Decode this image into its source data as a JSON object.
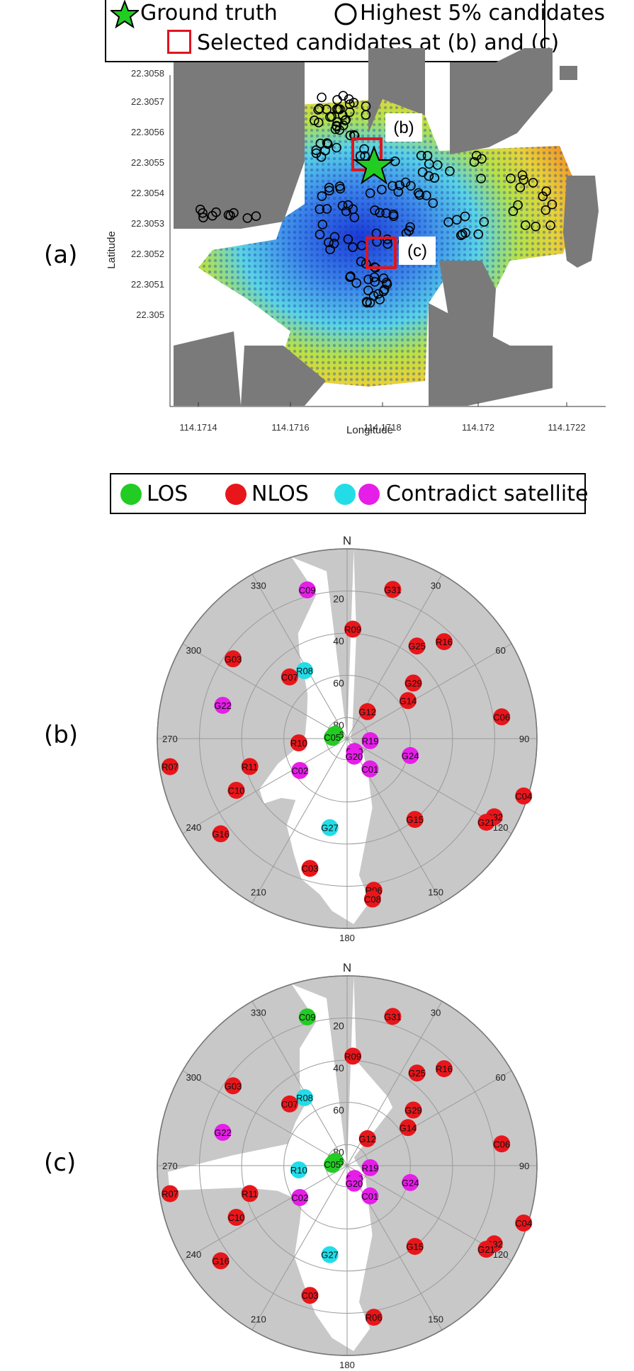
{
  "legend_top": {
    "ground_truth": "Ground truth",
    "highest": "Highest 5% candidates",
    "selected": "Selected candidates at (b) and (c)"
  },
  "legend_sky": {
    "los": "LOS",
    "nlos": "NLOS",
    "contradict": "Contradict satellite"
  },
  "panels": {
    "a": "(a)",
    "b": "(b)",
    "c": "(c)"
  },
  "map": {
    "xlabel": "Longitude",
    "ylabel": "Latitude",
    "xticks": [
      "114.1714",
      "114.1716",
      "114.1718",
      "114.172",
      "114.1722"
    ],
    "yticks": [
      "22.3058",
      "22.3057",
      "22.3056",
      "22.3055",
      "22.3054",
      "22.3053",
      "22.3052",
      "22.3051",
      "22.305"
    ],
    "label_b": "(b)",
    "label_c": "(c)"
  },
  "skyplot": {
    "north": "N",
    "south": "180",
    "elev_labels": [
      "20",
      "40",
      "60",
      "80"
    ],
    "az_labels": {
      "30": "30",
      "60": "60",
      "90": "90",
      "120": "120",
      "150": "150",
      "210": "210",
      "240": "240",
      "270": "270",
      "300": "300",
      "330": "330"
    }
  },
  "colors": {
    "los": "#22cc22",
    "nlos": "#e8161b",
    "contradict_cyan": "#22dde8",
    "contradict_magenta": "#e51ee8",
    "building": "#c8c8c8",
    "box": "#e0141e"
  },
  "chart_data": [
    {
      "type": "scatter",
      "panel": "(a)",
      "xlabel": "Longitude",
      "ylabel": "Latitude",
      "xlim": [
        114.1712,
        114.1722
      ],
      "ylim": [
        22.30495,
        22.30585
      ],
      "ground_truth": {
        "lon": 114.17175,
        "lat": 22.30549
      },
      "selected": [
        {
          "label": "(b)",
          "lon": 114.17168,
          "lat": 22.30552
        },
        {
          "label": "(c)",
          "lon": 114.17176,
          "lat": 22.30519
        }
      ]
    },
    {
      "type": "scatter",
      "panel": "(b)",
      "satellites": [
        {
          "id": "C09",
          "az": 345,
          "el": 17,
          "status": "contradict-magenta"
        },
        {
          "id": "G31",
          "az": 17,
          "el": 16,
          "status": "nlos"
        },
        {
          "id": "G03",
          "az": 305,
          "el": 24,
          "status": "nlos"
        },
        {
          "id": "R09",
          "az": 3,
          "el": 38,
          "status": "nlos"
        },
        {
          "id": "G25",
          "az": 37,
          "el": 35,
          "status": "nlos"
        },
        {
          "id": "R16",
          "az": 45,
          "el": 25,
          "status": "nlos"
        },
        {
          "id": "R08",
          "az": 328,
          "el": 52,
          "status": "contradict-cyan"
        },
        {
          "id": "C07",
          "az": 317,
          "el": 50,
          "status": "nlos"
        },
        {
          "id": "G22",
          "az": 285,
          "el": 29,
          "status": "contradict-magenta"
        },
        {
          "id": "G29",
          "az": 50,
          "el": 49,
          "status": "nlos"
        },
        {
          "id": "G14",
          "az": 58,
          "el": 56,
          "status": "nlos"
        },
        {
          "id": "G12",
          "az": 37,
          "el": 74,
          "status": "nlos"
        },
        {
          "id": "C06",
          "az": 82,
          "el": 16,
          "status": "nlos"
        },
        {
          "id": "G26",
          "az": 290,
          "el": 84,
          "status": "los"
        },
        {
          "id": "C05",
          "az": 275,
          "el": 83,
          "status": "los"
        },
        {
          "id": "R19",
          "az": 95,
          "el": 79,
          "status": "contradict-magenta"
        },
        {
          "id": "R10",
          "az": 265,
          "el": 67,
          "status": "nlos"
        },
        {
          "id": "R20",
          "az": 150,
          "el": 83,
          "status": "contradict-magenta"
        },
        {
          "id": "G20",
          "az": 158,
          "el": 81,
          "status": "contradict-magenta"
        },
        {
          "id": "C01",
          "az": 143,
          "el": 72,
          "status": "contradict-magenta"
        },
        {
          "id": "G24",
          "az": 105,
          "el": 59,
          "status": "contradict-magenta"
        },
        {
          "id": "R07",
          "az": 261,
          "el": 5,
          "status": "nlos"
        },
        {
          "id": "R11",
          "az": 254,
          "el": 42,
          "status": "nlos"
        },
        {
          "id": "C02",
          "az": 236,
          "el": 63,
          "status": "contradict-magenta"
        },
        {
          "id": "C10",
          "az": 245,
          "el": 32,
          "status": "nlos"
        },
        {
          "id": "C04",
          "az": 108,
          "el": 2,
          "status": "nlos"
        },
        {
          "id": "G32",
          "az": 118,
          "el": 11,
          "status": "nlos"
        },
        {
          "id": "G21",
          "az": 121,
          "el": 13,
          "status": "nlos"
        },
        {
          "id": "G15",
          "az": 140,
          "el": 40,
          "status": "nlos"
        },
        {
          "id": "G16",
          "az": 233,
          "el": 15,
          "status": "nlos"
        },
        {
          "id": "G27",
          "az": 191,
          "el": 47,
          "status": "contradict-cyan"
        },
        {
          "id": "C03",
          "az": 196,
          "el": 26,
          "status": "nlos"
        },
        {
          "id": "R06",
          "az": 170,
          "el": 17,
          "status": "nlos"
        },
        {
          "id": "C08",
          "az": 171,
          "el": 13,
          "status": "nlos"
        }
      ]
    },
    {
      "type": "scatter",
      "panel": "(c)",
      "satellites": [
        {
          "id": "C09",
          "az": 345,
          "el": 17,
          "status": "los"
        },
        {
          "id": "G31",
          "az": 17,
          "el": 16,
          "status": "nlos"
        },
        {
          "id": "G03",
          "az": 305,
          "el": 24,
          "status": "nlos"
        },
        {
          "id": "R09",
          "az": 3,
          "el": 38,
          "status": "nlos"
        },
        {
          "id": "G25",
          "az": 37,
          "el": 35,
          "status": "nlos"
        },
        {
          "id": "R16",
          "az": 45,
          "el": 25,
          "status": "nlos"
        },
        {
          "id": "R08",
          "az": 328,
          "el": 52,
          "status": "contradict-cyan"
        },
        {
          "id": "C07",
          "az": 317,
          "el": 50,
          "status": "nlos"
        },
        {
          "id": "G22",
          "az": 285,
          "el": 29,
          "status": "contradict-magenta"
        },
        {
          "id": "G29",
          "az": 50,
          "el": 49,
          "status": "nlos"
        },
        {
          "id": "G14",
          "az": 58,
          "el": 56,
          "status": "nlos"
        },
        {
          "id": "G12",
          "az": 37,
          "el": 74,
          "status": "nlos"
        },
        {
          "id": "C06",
          "az": 82,
          "el": 16,
          "status": "nlos"
        },
        {
          "id": "G26",
          "az": 290,
          "el": 84,
          "status": "los"
        },
        {
          "id": "C05",
          "az": 275,
          "el": 83,
          "status": "los"
        },
        {
          "id": "R19",
          "az": 95,
          "el": 79,
          "status": "contradict-magenta"
        },
        {
          "id": "R10",
          "az": 265,
          "el": 67,
          "status": "contradict-cyan"
        },
        {
          "id": "R20",
          "az": 150,
          "el": 83,
          "status": "contradict-magenta"
        },
        {
          "id": "G20",
          "az": 158,
          "el": 81,
          "status": "contradict-magenta"
        },
        {
          "id": "C01",
          "az": 143,
          "el": 72,
          "status": "contradict-magenta"
        },
        {
          "id": "G24",
          "az": 105,
          "el": 59,
          "status": "contradict-magenta"
        },
        {
          "id": "R07",
          "az": 261,
          "el": 5,
          "status": "nlos"
        },
        {
          "id": "R11",
          "az": 254,
          "el": 42,
          "status": "nlos"
        },
        {
          "id": "C02",
          "az": 236,
          "el": 63,
          "status": "contradict-magenta"
        },
        {
          "id": "C10",
          "az": 245,
          "el": 32,
          "status": "nlos"
        },
        {
          "id": "C04",
          "az": 108,
          "el": 2,
          "status": "nlos"
        },
        {
          "id": "G32",
          "az": 118,
          "el": 11,
          "status": "nlos"
        },
        {
          "id": "G21",
          "az": 121,
          "el": 13,
          "status": "nlos"
        },
        {
          "id": "G15",
          "az": 140,
          "el": 40,
          "status": "nlos"
        },
        {
          "id": "G16",
          "az": 233,
          "el": 15,
          "status": "nlos"
        },
        {
          "id": "G27",
          "az": 191,
          "el": 47,
          "status": "contradict-cyan"
        },
        {
          "id": "C03",
          "az": 196,
          "el": 26,
          "status": "nlos"
        },
        {
          "id": "R06",
          "az": 170,
          "el": 17,
          "status": "nlos"
        }
      ]
    }
  ]
}
